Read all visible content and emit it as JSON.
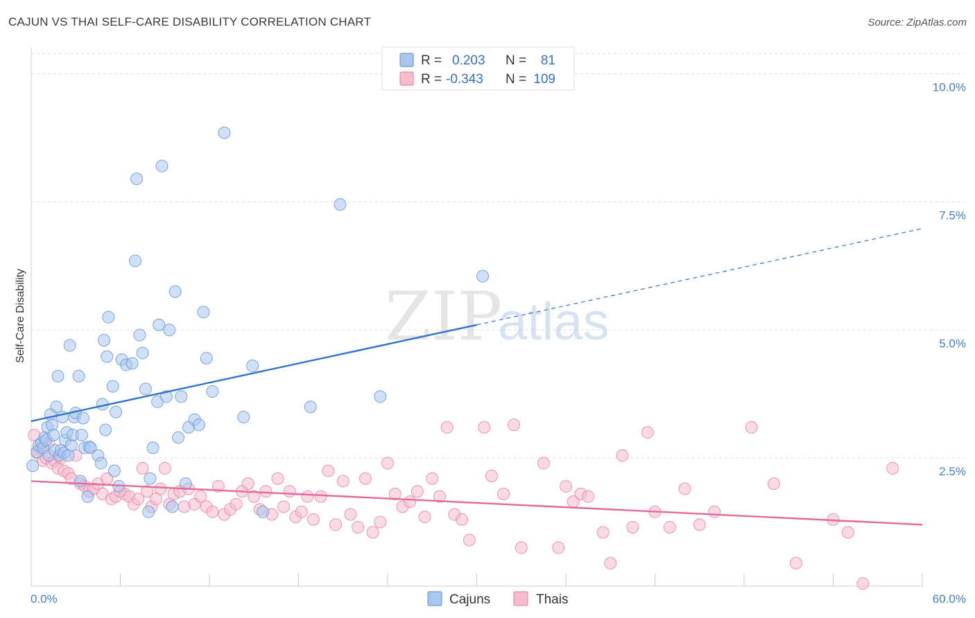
{
  "title": "CAJUN VS THAI SELF-CARE DISABILITY CORRELATION CHART",
  "source": "Source: ZipAtlas.com",
  "watermark": {
    "zip": "ZIP",
    "atlas": "atlas"
  },
  "colors": {
    "cajun_fill": "#a9c6ee",
    "cajun_stroke": "#6f9bd6",
    "cajun_line": "#2f73cf",
    "thai_fill": "#f6bccd",
    "thai_stroke": "#e98aa6",
    "thai_line": "#e4699a",
    "grid": "#dddddd",
    "tick_text": "#4a7cc9"
  },
  "legend": {
    "rows": [
      {
        "r_label": "R =",
        "r_value": "0.203",
        "n_label": "N =",
        "n_value": "81"
      },
      {
        "r_label": "R =",
        "r_value": "-0.343",
        "n_label": "N =",
        "n_value": "109"
      }
    ]
  },
  "bottom_legend": [
    "Cajuns",
    "Thais"
  ],
  "chart_data": {
    "type": "scatter",
    "title": "CAJUN VS THAI SELF-CARE DISABILITY CORRELATION CHART",
    "xlabel": "",
    "ylabel": "Self-Care Disability",
    "x_tick_labels": [
      "0.0%",
      "60.0%"
    ],
    "y_tick_labels": [
      "2.5%",
      "5.0%",
      "7.5%",
      "10.0%"
    ],
    "y_ticks": [
      2.5,
      5.0,
      7.5,
      10.0
    ],
    "xlim": [
      0,
      60
    ],
    "ylim": [
      0,
      10.4
    ],
    "grid": "horizontal dashed",
    "legend_position": "top-center",
    "series": [
      {
        "name": "Cajuns",
        "stats": {
          "R": 0.203,
          "N": 81
        },
        "trend": {
          "x0": 0,
          "y0": 3.22,
          "x1": 60,
          "y1": 6.98,
          "solid_until_x": 30
        },
        "points": [
          [
            0.1,
            2.35
          ],
          [
            0.4,
            2.62
          ],
          [
            0.5,
            2.75
          ],
          [
            0.7,
            2.8
          ],
          [
            0.8,
            2.7
          ],
          [
            0.9,
            2.9
          ],
          [
            1.0,
            2.85
          ],
          [
            1.1,
            3.1
          ],
          [
            1.2,
            2.55
          ],
          [
            1.3,
            3.35
          ],
          [
            1.4,
            3.15
          ],
          [
            1.5,
            2.95
          ],
          [
            1.6,
            2.65
          ],
          [
            1.7,
            3.5
          ],
          [
            1.8,
            4.1
          ],
          [
            1.9,
            2.55
          ],
          [
            2.0,
            2.65
          ],
          [
            2.1,
            3.3
          ],
          [
            2.2,
            2.6
          ],
          [
            2.3,
            2.85
          ],
          [
            2.4,
            3.0
          ],
          [
            2.5,
            2.55
          ],
          [
            2.6,
            4.7
          ],
          [
            2.7,
            2.75
          ],
          [
            2.8,
            2.95
          ],
          [
            2.9,
            3.3
          ],
          [
            3.0,
            3.38
          ],
          [
            3.2,
            4.1
          ],
          [
            3.3,
            2.05
          ],
          [
            3.4,
            2.95
          ],
          [
            3.5,
            3.28
          ],
          [
            3.6,
            2.7
          ],
          [
            3.8,
            1.75
          ],
          [
            3.9,
            2.72
          ],
          [
            4.0,
            2.7
          ],
          [
            4.5,
            2.55
          ],
          [
            4.7,
            2.4
          ],
          [
            4.8,
            3.55
          ],
          [
            4.9,
            4.8
          ],
          [
            5.0,
            3.05
          ],
          [
            5.1,
            4.48
          ],
          [
            5.2,
            5.25
          ],
          [
            5.5,
            3.9
          ],
          [
            5.6,
            2.25
          ],
          [
            5.7,
            3.4
          ],
          [
            5.9,
            1.95
          ],
          [
            6.1,
            4.42
          ],
          [
            6.4,
            4.32
          ],
          [
            6.8,
            4.35
          ],
          [
            7.0,
            6.35
          ],
          [
            7.1,
            7.95
          ],
          [
            7.3,
            4.9
          ],
          [
            7.5,
            4.55
          ],
          [
            7.7,
            3.85
          ],
          [
            7.9,
            1.45
          ],
          [
            8.0,
            2.1
          ],
          [
            8.2,
            2.7
          ],
          [
            8.5,
            3.6
          ],
          [
            8.6,
            5.1
          ],
          [
            8.8,
            8.2
          ],
          [
            9.1,
            3.7
          ],
          [
            9.3,
            5.0
          ],
          [
            9.5,
            1.55
          ],
          [
            9.7,
            5.75
          ],
          [
            9.9,
            2.9
          ],
          [
            10.1,
            3.7
          ],
          [
            10.4,
            2.0
          ],
          [
            10.6,
            3.1
          ],
          [
            11.0,
            3.25
          ],
          [
            11.3,
            3.15
          ],
          [
            11.6,
            5.35
          ],
          [
            11.8,
            4.45
          ],
          [
            12.2,
            3.8
          ],
          [
            13.0,
            8.85
          ],
          [
            14.3,
            3.3
          ],
          [
            14.9,
            4.3
          ],
          [
            15.6,
            1.45
          ],
          [
            18.8,
            3.5
          ],
          [
            20.8,
            7.45
          ],
          [
            23.5,
            3.7
          ],
          [
            30.4,
            6.05
          ]
        ]
      },
      {
        "name": "Thais",
        "stats": {
          "R": -0.343,
          "N": 109
        },
        "trend": {
          "x0": 0,
          "y0": 2.05,
          "x1": 60,
          "y1": 1.2
        },
        "points": [
          [
            0.2,
            2.95
          ],
          [
            0.4,
            2.6
          ],
          [
            0.6,
            2.7
          ],
          [
            0.8,
            2.45
          ],
          [
            1.0,
            2.5
          ],
          [
            1.2,
            2.8
          ],
          [
            1.4,
            2.4
          ],
          [
            1.6,
            2.45
          ],
          [
            1.8,
            2.3
          ],
          [
            2.0,
            2.5
          ],
          [
            2.2,
            2.25
          ],
          [
            2.5,
            2.2
          ],
          [
            2.7,
            2.1
          ],
          [
            3.0,
            2.55
          ],
          [
            3.3,
            2.0
          ],
          [
            3.6,
            1.95
          ],
          [
            3.9,
            1.85
          ],
          [
            4.2,
            1.9
          ],
          [
            4.5,
            2.0
          ],
          [
            4.8,
            1.8
          ],
          [
            5.1,
            2.1
          ],
          [
            5.4,
            1.7
          ],
          [
            5.7,
            1.75
          ],
          [
            6.0,
            1.85
          ],
          [
            6.3,
            1.8
          ],
          [
            6.6,
            1.75
          ],
          [
            6.9,
            1.6
          ],
          [
            7.2,
            1.7
          ],
          [
            7.5,
            2.3
          ],
          [
            7.8,
            1.85
          ],
          [
            8.1,
            1.55
          ],
          [
            8.4,
            1.7
          ],
          [
            8.7,
            1.9
          ],
          [
            9.0,
            2.3
          ],
          [
            9.3,
            1.6
          ],
          [
            9.6,
            1.8
          ],
          [
            10.0,
            1.85
          ],
          [
            10.3,
            1.55
          ],
          [
            10.6,
            1.9
          ],
          [
            11.0,
            1.6
          ],
          [
            11.4,
            1.75
          ],
          [
            11.8,
            1.55
          ],
          [
            12.2,
            1.45
          ],
          [
            12.6,
            1.95
          ],
          [
            13.0,
            1.4
          ],
          [
            13.4,
            1.5
          ],
          [
            13.8,
            1.6
          ],
          [
            14.2,
            1.85
          ],
          [
            14.6,
            2.0
          ],
          [
            15.0,
            1.75
          ],
          [
            15.4,
            1.5
          ],
          [
            15.8,
            1.85
          ],
          [
            16.2,
            1.4
          ],
          [
            16.6,
            2.1
          ],
          [
            17.0,
            1.55
          ],
          [
            17.4,
            1.85
          ],
          [
            17.8,
            1.35
          ],
          [
            18.2,
            1.45
          ],
          [
            18.6,
            1.75
          ],
          [
            19.0,
            1.3
          ],
          [
            19.5,
            1.75
          ],
          [
            20.0,
            2.25
          ],
          [
            20.5,
            1.2
          ],
          [
            21.0,
            2.05
          ],
          [
            21.5,
            1.4
          ],
          [
            22.0,
            1.15
          ],
          [
            22.5,
            2.1
          ],
          [
            23.0,
            1.05
          ],
          [
            23.5,
            1.25
          ],
          [
            24.0,
            2.4
          ],
          [
            24.5,
            1.8
          ],
          [
            25.0,
            1.55
          ],
          [
            25.5,
            1.65
          ],
          [
            26.0,
            1.85
          ],
          [
            26.5,
            1.35
          ],
          [
            27.0,
            2.1
          ],
          [
            27.5,
            1.75
          ],
          [
            28.0,
            3.1
          ],
          [
            28.5,
            1.4
          ],
          [
            29.0,
            1.3
          ],
          [
            29.5,
            0.9
          ],
          [
            30.5,
            3.1
          ],
          [
            31.0,
            2.15
          ],
          [
            31.8,
            1.8
          ],
          [
            32.5,
            3.15
          ],
          [
            33.0,
            0.75
          ],
          [
            34.5,
            2.4
          ],
          [
            35.5,
            0.75
          ],
          [
            36.0,
            1.95
          ],
          [
            36.5,
            1.65
          ],
          [
            37.0,
            1.8
          ],
          [
            37.5,
            1.75
          ],
          [
            38.5,
            1.05
          ],
          [
            39.0,
            0.45
          ],
          [
            39.8,
            2.55
          ],
          [
            40.5,
            1.15
          ],
          [
            41.5,
            3.0
          ],
          [
            42.0,
            1.45
          ],
          [
            43.0,
            1.15
          ],
          [
            44.0,
            1.9
          ],
          [
            45.0,
            1.2
          ],
          [
            46.0,
            1.45
          ],
          [
            48.5,
            3.1
          ],
          [
            50.0,
            2.0
          ],
          [
            51.5,
            0.45
          ],
          [
            54.0,
            1.3
          ],
          [
            55.0,
            1.05
          ],
          [
            56.0,
            0.05
          ],
          [
            58.0,
            2.3
          ]
        ]
      }
    ]
  }
}
